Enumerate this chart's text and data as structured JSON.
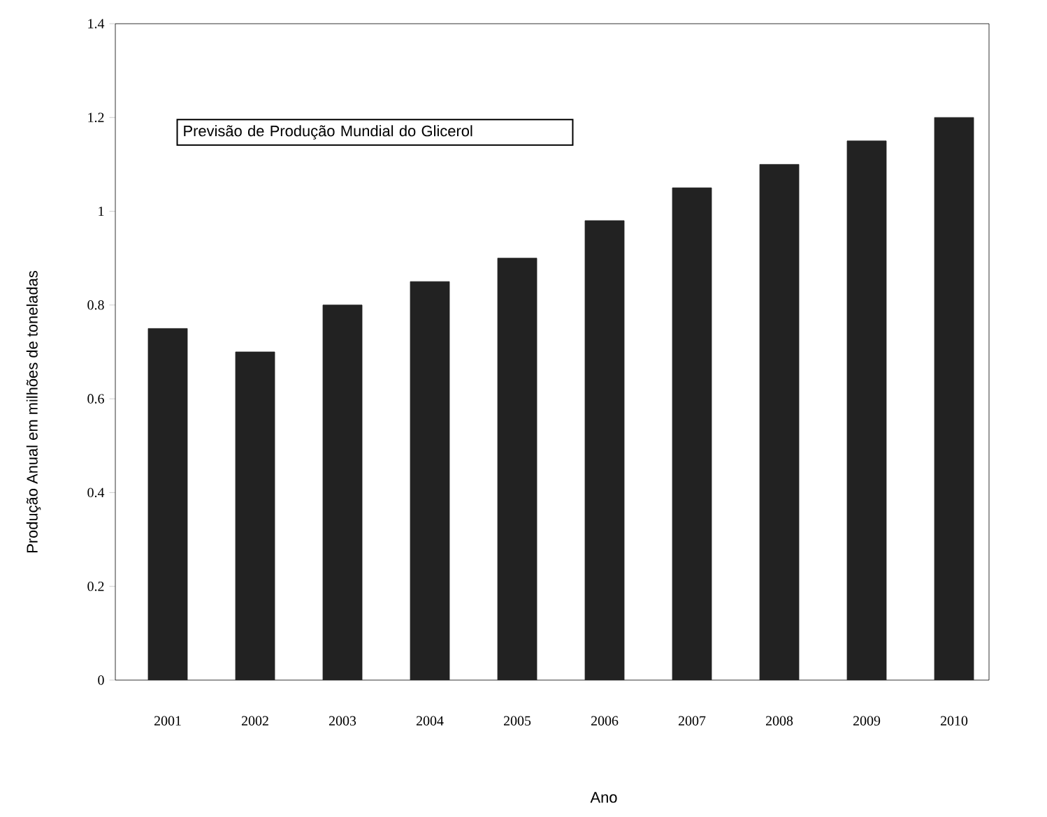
{
  "chart_data": {
    "type": "bar",
    "title": "Previsão de Produção Mundial do Glicerol",
    "xlabel": "Ano",
    "ylabel": "Produção Anual em milhões de toneladas",
    "categories": [
      "2001",
      "2002",
      "2003",
      "2004",
      "2005",
      "2006",
      "2007",
      "2008",
      "2009",
      "2010"
    ],
    "values": [
      0.75,
      0.7,
      0.8,
      0.85,
      0.9,
      0.98,
      1.05,
      1.1,
      1.15,
      1.2
    ],
    "color": "#222222",
    "ylim": [
      0,
      1.4
    ],
    "yticks": [
      0,
      0.2,
      0.4,
      0.6,
      0.8,
      1,
      1.2,
      1.4
    ],
    "grid": false
  }
}
